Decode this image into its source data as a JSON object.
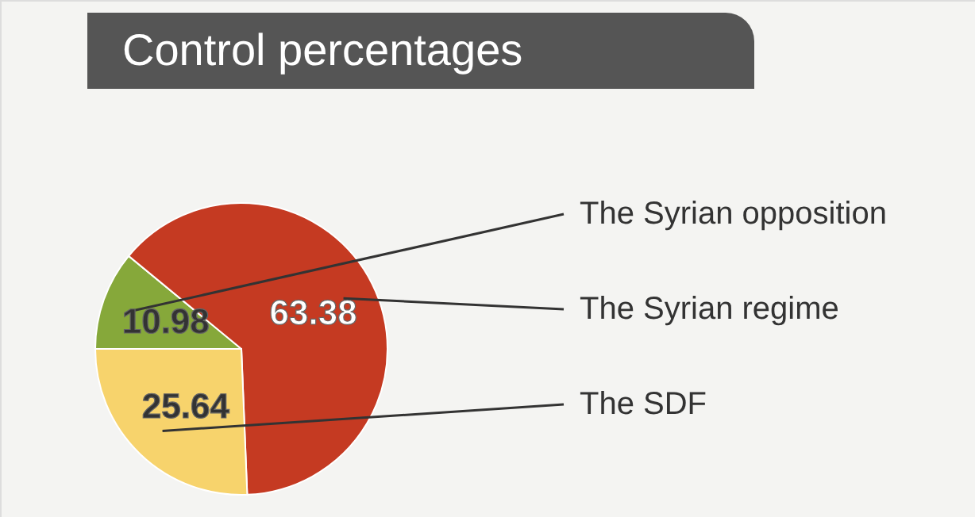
{
  "chart_data": {
    "type": "pie",
    "title": "Control percentages",
    "categories": [
      "The Syrian opposition",
      "The Syrian regime",
      "The SDF"
    ],
    "values": [
      10.98,
      63.38,
      25.64
    ],
    "colors": [
      "#86a83a",
      "#c53a22",
      "#f7d36c"
    ],
    "data_labels": true
  }
}
